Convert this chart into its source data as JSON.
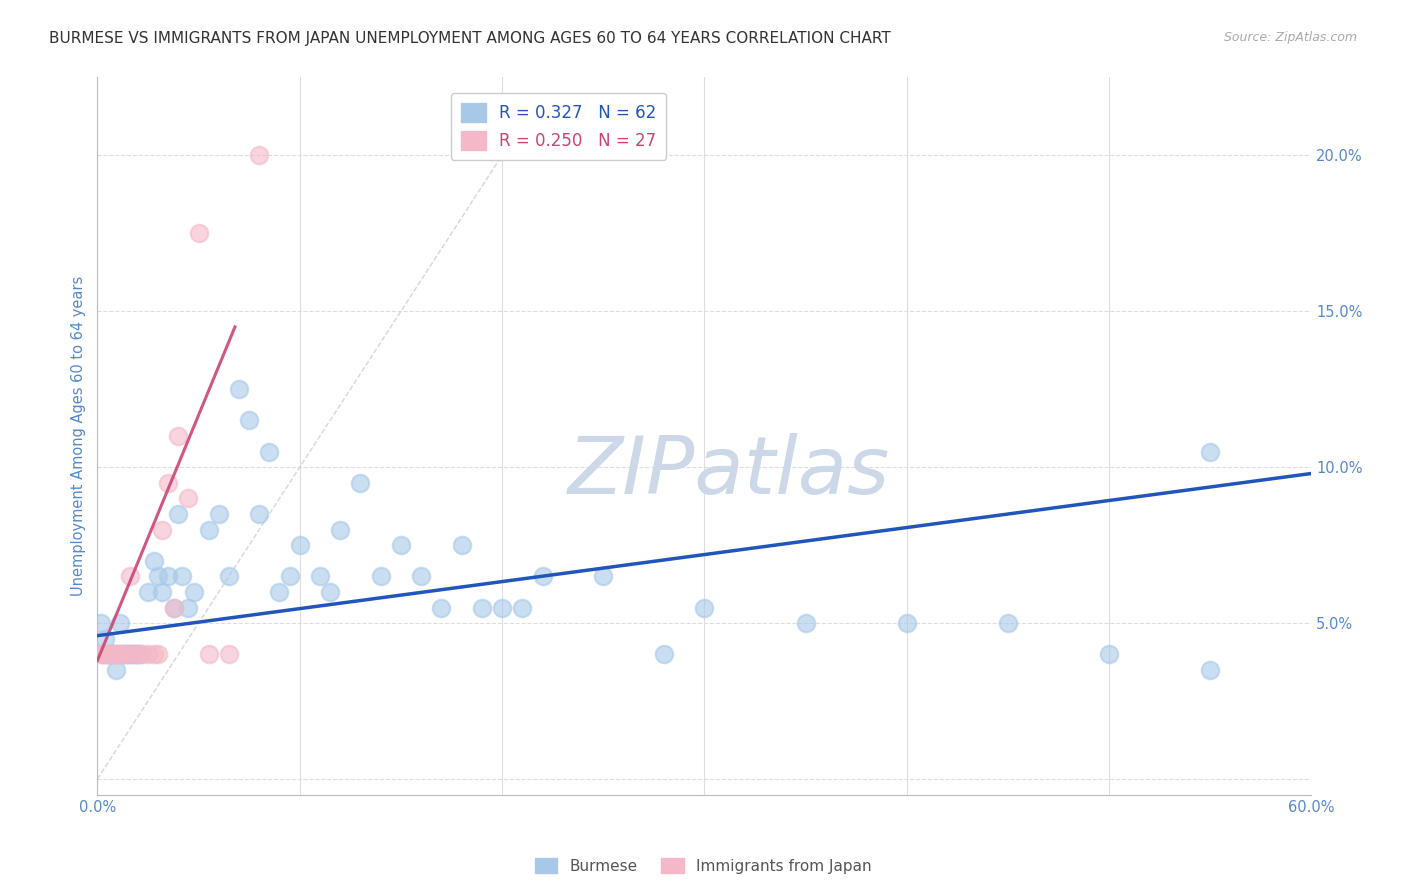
{
  "title": "BURMESE VS IMMIGRANTS FROM JAPAN UNEMPLOYMENT AMONG AGES 60 TO 64 YEARS CORRELATION CHART",
  "source": "Source: ZipAtlas.com",
  "ylabel": "Unemployment Among Ages 60 to 64 years",
  "yticks": [
    0.0,
    0.05,
    0.1,
    0.15,
    0.2
  ],
  "ytick_labels": [
    "",
    "5.0%",
    "10.0%",
    "15.0%",
    "20.0%"
  ],
  "xlim": [
    0.0,
    0.6
  ],
  "ylim": [
    -0.005,
    0.225
  ],
  "watermark": "ZIPatlas",
  "blue_scatter_x": [
    0.002,
    0.003,
    0.004,
    0.005,
    0.006,
    0.007,
    0.008,
    0.009,
    0.01,
    0.011,
    0.012,
    0.013,
    0.014,
    0.015,
    0.016,
    0.017,
    0.018,
    0.019,
    0.02,
    0.021,
    0.025,
    0.028,
    0.03,
    0.032,
    0.035,
    0.038,
    0.04,
    0.042,
    0.045,
    0.048,
    0.055,
    0.06,
    0.065,
    0.07,
    0.075,
    0.08,
    0.085,
    0.09,
    0.095,
    0.1,
    0.11,
    0.115,
    0.12,
    0.13,
    0.14,
    0.15,
    0.16,
    0.17,
    0.18,
    0.19,
    0.2,
    0.21,
    0.22,
    0.25,
    0.28,
    0.3,
    0.35,
    0.4,
    0.45,
    0.5,
    0.55,
    0.55
  ],
  "blue_scatter_y": [
    0.05,
    0.04,
    0.045,
    0.04,
    0.04,
    0.04,
    0.04,
    0.035,
    0.04,
    0.05,
    0.04,
    0.04,
    0.04,
    0.04,
    0.04,
    0.04,
    0.04,
    0.04,
    0.04,
    0.04,
    0.06,
    0.07,
    0.065,
    0.06,
    0.065,
    0.055,
    0.085,
    0.065,
    0.055,
    0.06,
    0.08,
    0.085,
    0.065,
    0.125,
    0.115,
    0.085,
    0.105,
    0.06,
    0.065,
    0.075,
    0.065,
    0.06,
    0.08,
    0.095,
    0.065,
    0.075,
    0.065,
    0.055,
    0.075,
    0.055,
    0.055,
    0.055,
    0.065,
    0.065,
    0.04,
    0.055,
    0.05,
    0.05,
    0.05,
    0.04,
    0.035,
    0.105
  ],
  "pink_scatter_x": [
    0.002,
    0.003,
    0.004,
    0.005,
    0.006,
    0.007,
    0.008,
    0.009,
    0.01,
    0.012,
    0.014,
    0.016,
    0.018,
    0.02,
    0.022,
    0.025,
    0.028,
    0.03,
    0.032,
    0.035,
    0.038,
    0.04,
    0.045,
    0.05,
    0.055,
    0.065,
    0.08
  ],
  "pink_scatter_y": [
    0.04,
    0.04,
    0.04,
    0.04,
    0.04,
    0.04,
    0.04,
    0.04,
    0.04,
    0.04,
    0.04,
    0.065,
    0.04,
    0.04,
    0.04,
    0.04,
    0.04,
    0.04,
    0.08,
    0.095,
    0.055,
    0.11,
    0.09,
    0.175,
    0.04,
    0.04,
    0.2
  ],
  "blue_line_x": [
    0.0,
    0.6
  ],
  "blue_line_y": [
    0.046,
    0.098
  ],
  "pink_line_x": [
    0.0,
    0.068
  ],
  "pink_line_y": [
    0.038,
    0.145
  ],
  "ref_line_x": [
    0.0,
    0.22
  ],
  "ref_line_y": [
    0.0,
    0.22
  ],
  "blue_color": "#a8c8e8",
  "pink_color": "#f4b8c8",
  "blue_line_color": "#2255bb",
  "pink_line_color": "#cc4477",
  "ref_line_color": "#cccccc",
  "grid_color": "#dddddd",
  "title_color": "#333333",
  "axis_label_color": "#5588cc",
  "watermark_color": "#ccd8e8",
  "background_color": "#ffffff"
}
